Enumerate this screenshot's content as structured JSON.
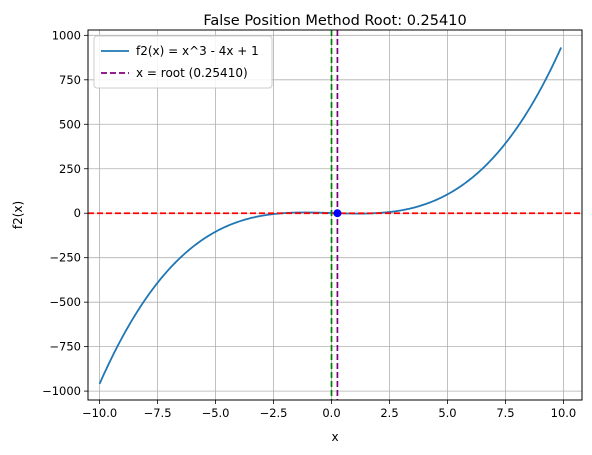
{
  "chart_data": {
    "type": "line",
    "title": "False Position Method Root: 0.25410",
    "xlabel": "x",
    "ylabel": "f2(x)",
    "xlim": [
      -10.5,
      10.8
    ],
    "ylim": [
      -1050,
      1030
    ],
    "x_ticks": [
      -10.0,
      -7.5,
      -5.0,
      -2.5,
      0.0,
      2.5,
      5.0,
      7.5,
      10.0
    ],
    "x_tick_labels": [
      "−10.0",
      "−7.5",
      "−5.0",
      "−2.5",
      "0.0",
      "2.5",
      "5.0",
      "7.5",
      "10.0"
    ],
    "y_ticks": [
      -1000,
      -750,
      -500,
      -250,
      0,
      250,
      500,
      750,
      1000
    ],
    "y_tick_labels": [
      "−1000",
      "−750",
      "−500",
      "−250",
      "0",
      "250",
      "500",
      "750",
      "1000"
    ],
    "grid": true,
    "legend_position": "upper-left",
    "series": [
      {
        "name": "f2(x) = x^3 - 4x + 1",
        "style": "solid",
        "color": "#1f77b4",
        "x_range": [
          -10,
          9.9
        ]
      }
    ],
    "reference_lines": [
      {
        "name": "x = root (0.25410)",
        "orientation": "vertical",
        "value": 0.2541,
        "color": "#800080",
        "style": "dashed",
        "in_legend": true
      },
      {
        "orientation": "vertical",
        "value": 0,
        "color": "#008000",
        "style": "dashed",
        "in_legend": false
      },
      {
        "orientation": "horizontal",
        "value": 0,
        "color": "#ff0000",
        "style": "dashed",
        "in_legend": false
      }
    ],
    "root_marker": {
      "x": 0.2541,
      "y": 0,
      "color": "#0000ff"
    }
  }
}
